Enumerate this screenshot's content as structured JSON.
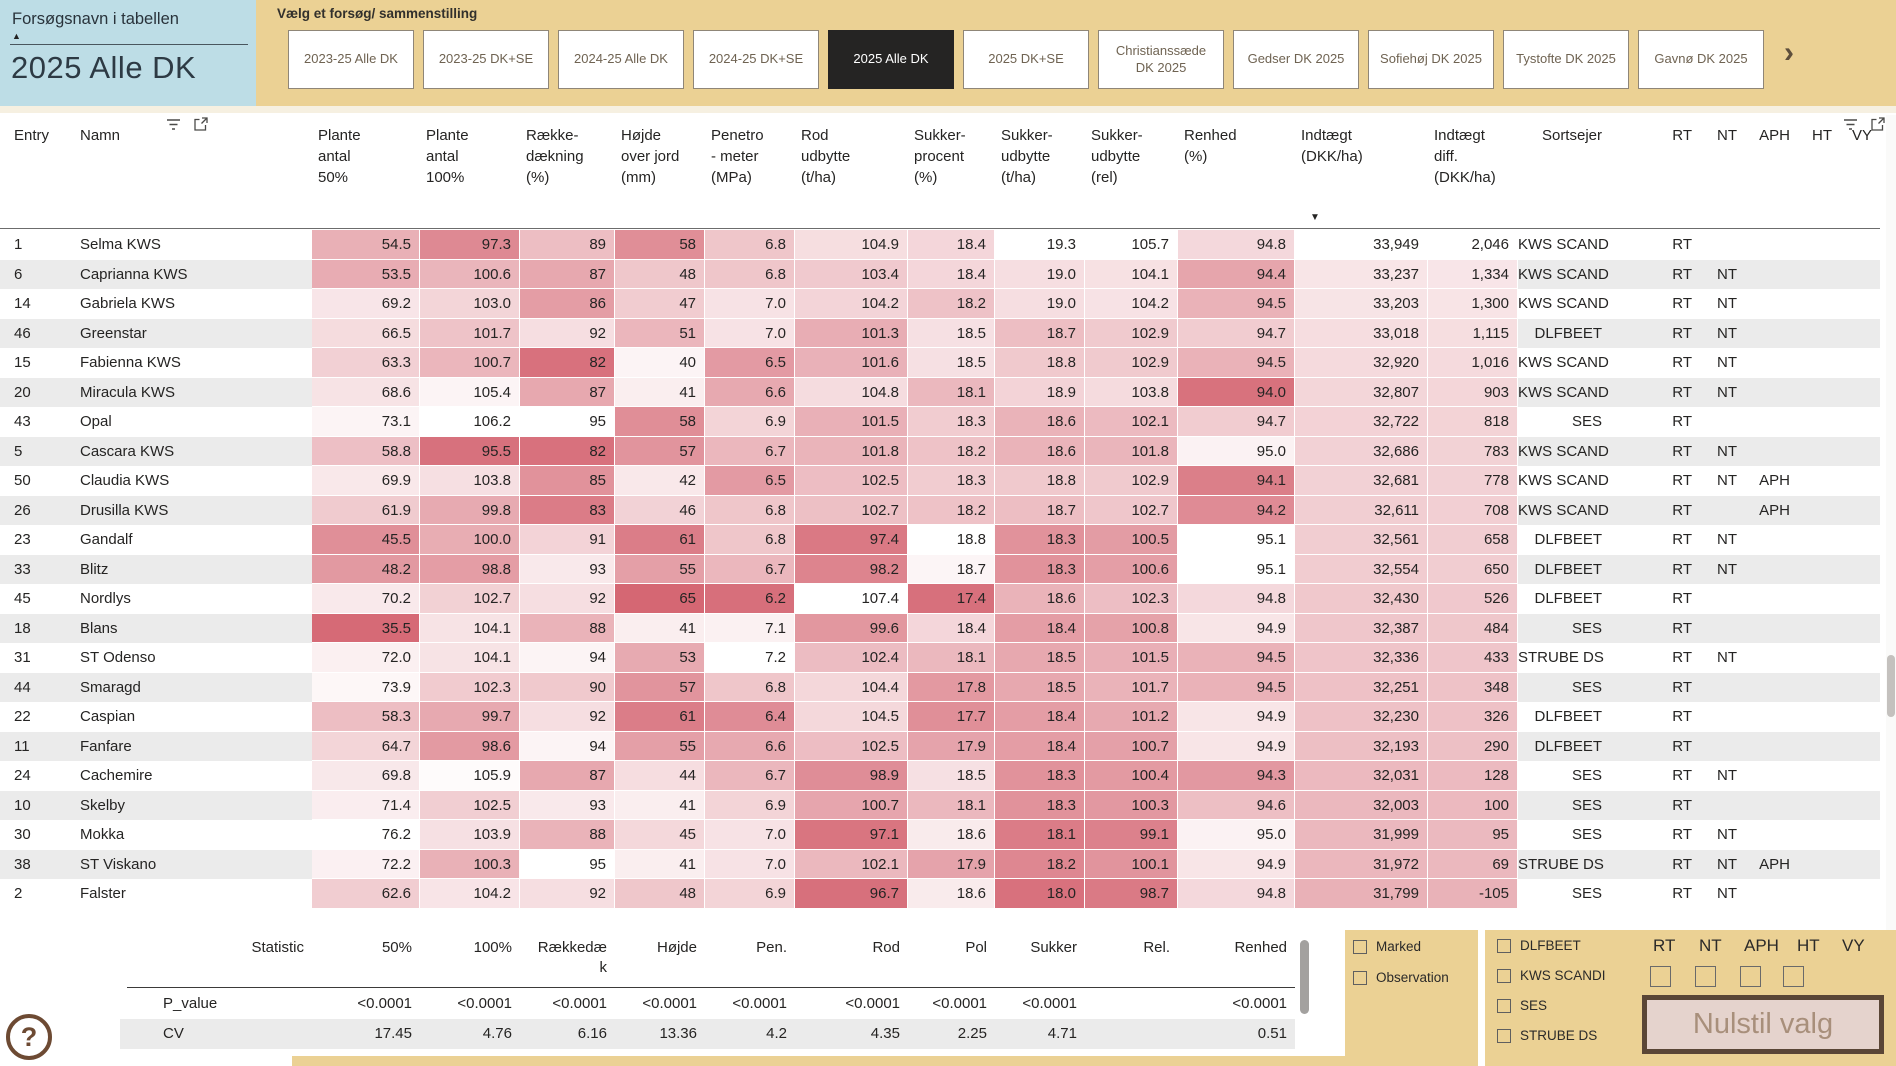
{
  "slicer": {
    "label": "Forsøgsnavn i tabellen",
    "value": "2025 Alle DK"
  },
  "misc": {
    "sort_asc": "▲",
    "sort_desc": "▼",
    "chevron": "›",
    "help": "?"
  },
  "tab_panel": {
    "label": "Vælg et forsøg/ sammenstilling",
    "selected_index": 4,
    "tabs": [
      "2023-25 Alle DK",
      "2023-25 DK+SE",
      "2024-25 Alle DK",
      "2024-25 DK+SE",
      "2025 Alle DK",
      "2025 DK+SE",
      "Christianssæde DK 2025",
      "Gedser DK 2025",
      "Sofiehøj DK 2025",
      "Tystofte DK 2025",
      "Gavnø DK 2025"
    ]
  },
  "table": {
    "sorted_by": "Indtægt (DKK/ha) descending",
    "columns": [
      {
        "key": "entry",
        "lines": [
          "Entry"
        ]
      },
      {
        "key": "namn",
        "lines": [
          "Namn"
        ]
      },
      {
        "key": "p50",
        "lines": [
          "Plante",
          "antal",
          "50%"
        ]
      },
      {
        "key": "p100",
        "lines": [
          "Plante",
          "antal",
          "100%"
        ]
      },
      {
        "key": "raekke",
        "lines": [
          "Række-",
          "dækning",
          "(%)"
        ]
      },
      {
        "key": "hojde",
        "lines": [
          "Højde",
          "over jord",
          "(mm)"
        ]
      },
      {
        "key": "pen",
        "lines": [
          "Penetro",
          "- meter",
          "(MPa)"
        ]
      },
      {
        "key": "rod",
        "lines": [
          "Rod",
          "udbytte",
          "(t/ha)"
        ]
      },
      {
        "key": "spct",
        "lines": [
          "Sukker-",
          "procent",
          "(%)"
        ]
      },
      {
        "key": "sudb",
        "lines": [
          "Sukker-",
          "udbytte",
          "(t/ha)"
        ]
      },
      {
        "key": "srel",
        "lines": [
          "Sukker-",
          "udbytte",
          "(rel)"
        ]
      },
      {
        "key": "renhed",
        "lines": [
          "Renhed",
          "(%)"
        ]
      },
      {
        "key": "indt",
        "lines": [
          "Indtægt",
          "(DKK/ha)"
        ]
      },
      {
        "key": "diff",
        "lines": [
          "Indtægt",
          "diff.",
          "(DKK/ha)"
        ]
      },
      {
        "key": "sortsejer",
        "lines": [
          "Sortsejer"
        ]
      },
      {
        "key": "rt",
        "lines": [
          "RT"
        ]
      },
      {
        "key": "nt",
        "lines": [
          "NT"
        ]
      },
      {
        "key": "aph",
        "lines": [
          "APH"
        ]
      },
      {
        "key": "ht",
        "lines": [
          "HT"
        ]
      },
      {
        "key": "vy",
        "lines": [
          "VY"
        ]
      }
    ],
    "rows": [
      {
        "entry": "1",
        "namn": "Selma KWS",
        "p50": "54.5",
        "p100": "97.3",
        "raekke": "89",
        "hojde": "58",
        "pen": "6.8",
        "rod": "104.9",
        "spct": "18.4",
        "sudb": "19.3",
        "srel": "105.7",
        "renhed": "94.8",
        "indt": "33,949",
        "diff": "2,046",
        "sortsejer": "KWS SCANDI",
        "rt": "RT",
        "nt": "",
        "aph": "",
        "ht": "",
        "vy": ""
      },
      {
        "entry": "6",
        "namn": "Caprianna KWS",
        "p50": "53.5",
        "p100": "100.6",
        "raekke": "87",
        "hojde": "48",
        "pen": "6.8",
        "rod": "103.4",
        "spct": "18.4",
        "sudb": "19.0",
        "srel": "104.1",
        "renhed": "94.4",
        "indt": "33,237",
        "diff": "1,334",
        "sortsejer": "KWS SCANDI",
        "rt": "RT",
        "nt": "NT",
        "aph": "",
        "ht": "",
        "vy": ""
      },
      {
        "entry": "14",
        "namn": "Gabriela KWS",
        "p50": "69.2",
        "p100": "103.0",
        "raekke": "86",
        "hojde": "47",
        "pen": "7.0",
        "rod": "104.2",
        "spct": "18.2",
        "sudb": "19.0",
        "srel": "104.2",
        "renhed": "94.5",
        "indt": "33,203",
        "diff": "1,300",
        "sortsejer": "KWS SCANDI",
        "rt": "RT",
        "nt": "NT",
        "aph": "",
        "ht": "",
        "vy": ""
      },
      {
        "entry": "46",
        "namn": "Greenstar",
        "p50": "66.5",
        "p100": "101.7",
        "raekke": "92",
        "hojde": "51",
        "pen": "7.0",
        "rod": "101.3",
        "spct": "18.5",
        "sudb": "18.7",
        "srel": "102.9",
        "renhed": "94.7",
        "indt": "33,018",
        "diff": "1,115",
        "sortsejer": "DLFBEET",
        "rt": "RT",
        "nt": "NT",
        "aph": "",
        "ht": "",
        "vy": ""
      },
      {
        "entry": "15",
        "namn": "Fabienna KWS",
        "p50": "63.3",
        "p100": "100.7",
        "raekke": "82",
        "hojde": "40",
        "pen": "6.5",
        "rod": "101.6",
        "spct": "18.5",
        "sudb": "18.8",
        "srel": "102.9",
        "renhed": "94.5",
        "indt": "32,920",
        "diff": "1,016",
        "sortsejer": "KWS SCANDI",
        "rt": "RT",
        "nt": "NT",
        "aph": "",
        "ht": "",
        "vy": ""
      },
      {
        "entry": "20",
        "namn": "Miracula KWS",
        "p50": "68.6",
        "p100": "105.4",
        "raekke": "87",
        "hojde": "41",
        "pen": "6.6",
        "rod": "104.8",
        "spct": "18.1",
        "sudb": "18.9",
        "srel": "103.8",
        "renhed": "94.0",
        "indt": "32,807",
        "diff": "903",
        "sortsejer": "KWS SCANDI",
        "rt": "RT",
        "nt": "NT",
        "aph": "",
        "ht": "",
        "vy": ""
      },
      {
        "entry": "43",
        "namn": "Opal",
        "p50": "73.1",
        "p100": "106.2",
        "raekke": "95",
        "hojde": "58",
        "pen": "6.9",
        "rod": "101.5",
        "spct": "18.3",
        "sudb": "18.6",
        "srel": "102.1",
        "renhed": "94.7",
        "indt": "32,722",
        "diff": "818",
        "sortsejer": "SES",
        "rt": "RT",
        "nt": "",
        "aph": "",
        "ht": "",
        "vy": ""
      },
      {
        "entry": "5",
        "namn": "Cascara KWS",
        "p50": "58.8",
        "p100": "95.5",
        "raekke": "82",
        "hojde": "57",
        "pen": "6.7",
        "rod": "101.8",
        "spct": "18.2",
        "sudb": "18.6",
        "srel": "101.8",
        "renhed": "95.0",
        "indt": "32,686",
        "diff": "783",
        "sortsejer": "KWS SCANDI",
        "rt": "RT",
        "nt": "NT",
        "aph": "",
        "ht": "",
        "vy": ""
      },
      {
        "entry": "50",
        "namn": "Claudia KWS",
        "p50": "69.9",
        "p100": "103.8",
        "raekke": "85",
        "hojde": "42",
        "pen": "6.5",
        "rod": "102.5",
        "spct": "18.3",
        "sudb": "18.8",
        "srel": "102.9",
        "renhed": "94.1",
        "indt": "32,681",
        "diff": "778",
        "sortsejer": "KWS SCANDI",
        "rt": "RT",
        "nt": "NT",
        "aph": "APH",
        "ht": "",
        "vy": ""
      },
      {
        "entry": "26",
        "namn": "Drusilla KWS",
        "p50": "61.9",
        "p100": "99.8",
        "raekke": "83",
        "hojde": "46",
        "pen": "6.8",
        "rod": "102.7",
        "spct": "18.2",
        "sudb": "18.7",
        "srel": "102.7",
        "renhed": "94.2",
        "indt": "32,611",
        "diff": "708",
        "sortsejer": "KWS SCANDI",
        "rt": "RT",
        "nt": "",
        "aph": "APH",
        "ht": "",
        "vy": ""
      },
      {
        "entry": "23",
        "namn": "Gandalf",
        "p50": "45.5",
        "p100": "100.0",
        "raekke": "91",
        "hojde": "61",
        "pen": "6.8",
        "rod": "97.4",
        "spct": "18.8",
        "sudb": "18.3",
        "srel": "100.5",
        "renhed": "95.1",
        "indt": "32,561",
        "diff": "658",
        "sortsejer": "DLFBEET",
        "rt": "RT",
        "nt": "NT",
        "aph": "",
        "ht": "",
        "vy": ""
      },
      {
        "entry": "33",
        "namn": "Blitz",
        "p50": "48.2",
        "p100": "98.8",
        "raekke": "93",
        "hojde": "55",
        "pen": "6.7",
        "rod": "98.2",
        "spct": "18.7",
        "sudb": "18.3",
        "srel": "100.6",
        "renhed": "95.1",
        "indt": "32,554",
        "diff": "650",
        "sortsejer": "DLFBEET",
        "rt": "RT",
        "nt": "NT",
        "aph": "",
        "ht": "",
        "vy": ""
      },
      {
        "entry": "45",
        "namn": "Nordlys",
        "p50": "70.2",
        "p100": "102.7",
        "raekke": "92",
        "hojde": "65",
        "pen": "6.2",
        "rod": "107.4",
        "spct": "17.4",
        "sudb": "18.6",
        "srel": "102.3",
        "renhed": "94.8",
        "indt": "32,430",
        "diff": "526",
        "sortsejer": "DLFBEET",
        "rt": "RT",
        "nt": "",
        "aph": "",
        "ht": "",
        "vy": ""
      },
      {
        "entry": "18",
        "namn": "Blans",
        "p50": "35.5",
        "p100": "104.1",
        "raekke": "88",
        "hojde": "41",
        "pen": "7.1",
        "rod": "99.6",
        "spct": "18.4",
        "sudb": "18.4",
        "srel": "100.8",
        "renhed": "94.9",
        "indt": "32,387",
        "diff": "484",
        "sortsejer": "SES",
        "rt": "RT",
        "nt": "",
        "aph": "",
        "ht": "",
        "vy": ""
      },
      {
        "entry": "31",
        "namn": "ST Odenso",
        "p50": "72.0",
        "p100": "104.1",
        "raekke": "94",
        "hojde": "53",
        "pen": "7.2",
        "rod": "102.4",
        "spct": "18.1",
        "sudb": "18.5",
        "srel": "101.5",
        "renhed": "94.5",
        "indt": "32,336",
        "diff": "433",
        "sortsejer": "STRUBE DS",
        "rt": "RT",
        "nt": "NT",
        "aph": "",
        "ht": "",
        "vy": ""
      },
      {
        "entry": "44",
        "namn": "Smaragd",
        "p50": "73.9",
        "p100": "102.3",
        "raekke": "90",
        "hojde": "57",
        "pen": "6.8",
        "rod": "104.4",
        "spct": "17.8",
        "sudb": "18.5",
        "srel": "101.7",
        "renhed": "94.5",
        "indt": "32,251",
        "diff": "348",
        "sortsejer": "SES",
        "rt": "RT",
        "nt": "",
        "aph": "",
        "ht": "",
        "vy": ""
      },
      {
        "entry": "22",
        "namn": "Caspian",
        "p50": "58.3",
        "p100": "99.7",
        "raekke": "92",
        "hojde": "61",
        "pen": "6.4",
        "rod": "104.5",
        "spct": "17.7",
        "sudb": "18.4",
        "srel": "101.2",
        "renhed": "94.9",
        "indt": "32,230",
        "diff": "326",
        "sortsejer": "DLFBEET",
        "rt": "RT",
        "nt": "",
        "aph": "",
        "ht": "",
        "vy": ""
      },
      {
        "entry": "11",
        "namn": "Fanfare",
        "p50": "64.7",
        "p100": "98.6",
        "raekke": "94",
        "hojde": "55",
        "pen": "6.6",
        "rod": "102.5",
        "spct": "17.9",
        "sudb": "18.4",
        "srel": "100.7",
        "renhed": "94.9",
        "indt": "32,193",
        "diff": "290",
        "sortsejer": "DLFBEET",
        "rt": "RT",
        "nt": "",
        "aph": "",
        "ht": "",
        "vy": ""
      },
      {
        "entry": "24",
        "namn": "Cachemire",
        "p50": "69.8",
        "p100": "105.9",
        "raekke": "87",
        "hojde": "44",
        "pen": "6.7",
        "rod": "98.9",
        "spct": "18.5",
        "sudb": "18.3",
        "srel": "100.4",
        "renhed": "94.3",
        "indt": "32,031",
        "diff": "128",
        "sortsejer": "SES",
        "rt": "RT",
        "nt": "NT",
        "aph": "",
        "ht": "",
        "vy": ""
      },
      {
        "entry": "10",
        "namn": "Skelby",
        "p50": "71.4",
        "p100": "102.5",
        "raekke": "93",
        "hojde": "41",
        "pen": "6.9",
        "rod": "100.7",
        "spct": "18.1",
        "sudb": "18.3",
        "srel": "100.3",
        "renhed": "94.6",
        "indt": "32,003",
        "diff": "100",
        "sortsejer": "SES",
        "rt": "RT",
        "nt": "",
        "aph": "",
        "ht": "",
        "vy": ""
      },
      {
        "entry": "30",
        "namn": "Mokka",
        "p50": "76.2",
        "p100": "103.9",
        "raekke": "88",
        "hojde": "45",
        "pen": "7.0",
        "rod": "97.1",
        "spct": "18.6",
        "sudb": "18.1",
        "srel": "99.1",
        "renhed": "95.0",
        "indt": "31,999",
        "diff": "95",
        "sortsejer": "SES",
        "rt": "RT",
        "nt": "NT",
        "aph": "",
        "ht": "",
        "vy": ""
      },
      {
        "entry": "38",
        "namn": "ST Viskano",
        "p50": "72.2",
        "p100": "100.3",
        "raekke": "95",
        "hojde": "41",
        "pen": "7.0",
        "rod": "102.1",
        "spct": "17.9",
        "sudb": "18.2",
        "srel": "100.1",
        "renhed": "94.9",
        "indt": "31,972",
        "diff": "69",
        "sortsejer": "STRUBE DS",
        "rt": "RT",
        "nt": "NT",
        "aph": "APH",
        "ht": "",
        "vy": ""
      },
      {
        "entry": "2",
        "namn": "Falster",
        "p50": "62.6",
        "p100": "104.2",
        "raekke": "92",
        "hojde": "48",
        "pen": "6.9",
        "rod": "96.7",
        "spct": "18.6",
        "sudb": "18.0",
        "srel": "98.7",
        "renhed": "94.8",
        "indt": "31,799",
        "diff": "-105",
        "sortsejer": "SES",
        "rt": "RT",
        "nt": "NT",
        "aph": "",
        "ht": "",
        "vy": ""
      }
    ]
  },
  "stats": {
    "corner": "Statistic",
    "headers": [
      "50%",
      "100%",
      "Rækkedæ\nk",
      "Højde",
      "Pen.",
      "Rod",
      "Pol",
      "Sukker",
      "Rel.",
      "Renhed"
    ],
    "rows": [
      {
        "label": "P_value",
        "values": [
          "<0.0001",
          "<0.0001",
          "<0.0001",
          "<0.0001",
          "<0.0001",
          "<0.0001",
          "<0.0001",
          "<0.0001",
          "",
          "<0.0001"
        ]
      },
      {
        "label": "CV",
        "values": [
          "17.45",
          "4.76",
          "6.16",
          "13.36",
          "4.2",
          "4.35",
          "2.25",
          "4.71",
          "",
          "0.51"
        ]
      }
    ]
  },
  "filters": {
    "marked_label": "Marked",
    "observation_label": "Observation",
    "owners": [
      "DLFBEET",
      "KWS SCANDI",
      "SES",
      "STRUBE DS"
    ],
    "traits": [
      "RT",
      "NT",
      "APH",
      "HT",
      "VY"
    ],
    "reset_label": "Nulstil valg"
  },
  "colors": {
    "tan": "#ebd194",
    "blue": "#bddde6",
    "selected_tab_bg": "#252423",
    "heat_max": "#d3616e",
    "row_alt": "#ebebeb",
    "brown": "#6d4a33",
    "button_face": "#e5d3cd",
    "button_border": "#5a4636",
    "button_text": "#a88f7b"
  }
}
